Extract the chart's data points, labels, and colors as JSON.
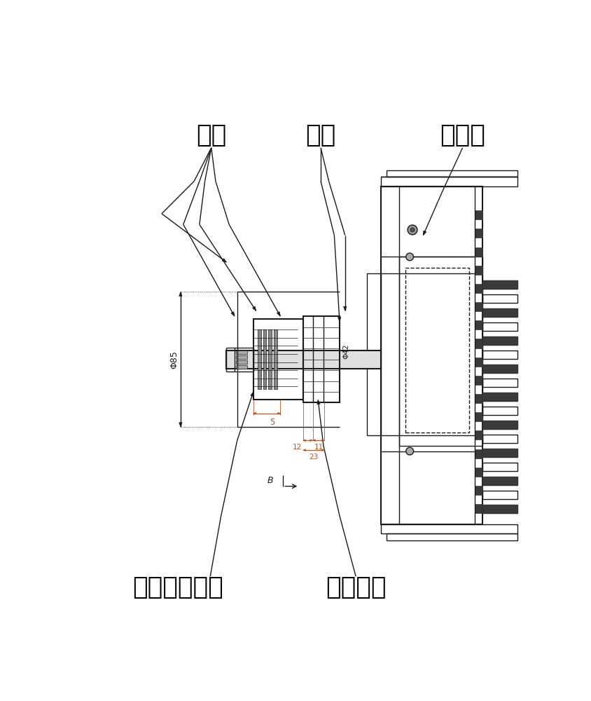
{
  "labels": {
    "ci_huan": "磁环",
    "zhuan_zhou": "转轴",
    "hou_duan_gai": "后端盖",
    "ci_huan_gu_ding_luo_ding": "磁环固定螺钉",
    "ci_huan_ya_ban": "磁环压板"
  },
  "bg_color": "#ffffff",
  "line_color": "#1a1a1a",
  "dim_color": "#c0522a",
  "text_color": "#000000",
  "gray_fill": "#c8c8c8",
  "dark_fill": "#3a3a3a",
  "mid_fill": "#888888"
}
